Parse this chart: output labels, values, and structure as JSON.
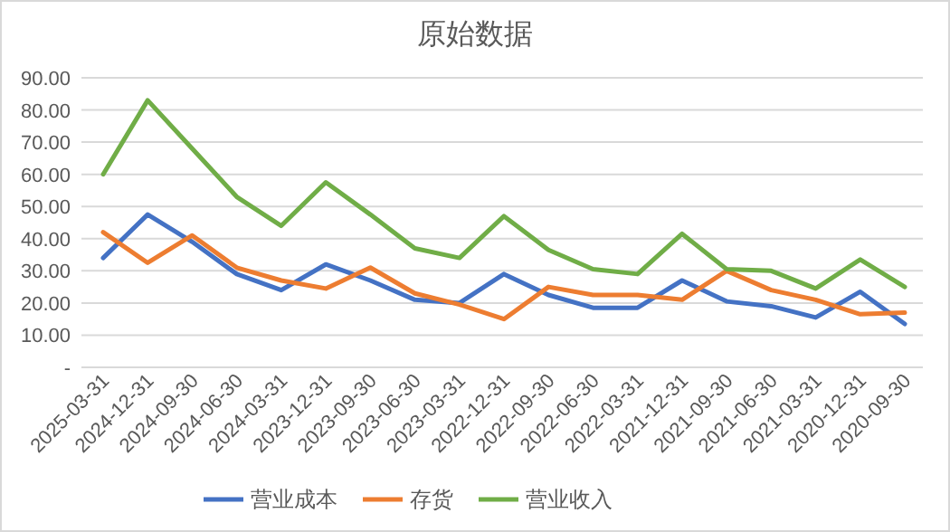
{
  "chart_data": {
    "type": "line",
    "title": "原始数据",
    "categories": [
      "2025-03-31",
      "2024-12-31",
      "2024-09-30",
      "2024-06-30",
      "2024-03-31",
      "2023-12-31",
      "2023-09-30",
      "2023-06-30",
      "2023-03-31",
      "2022-12-31",
      "2022-09-30",
      "2022-06-30",
      "2022-03-31",
      "2021-12-31",
      "2021-09-30",
      "2021-06-30",
      "2021-03-31",
      "2020-12-31",
      "2020-09-30"
    ],
    "series": [
      {
        "name": "营业成本",
        "color": "#4472c4",
        "values": [
          34,
          47.5,
          39,
          29,
          24,
          32,
          27,
          21,
          20,
          29,
          22.5,
          18.5,
          18.5,
          27,
          20.5,
          19,
          15.5,
          23.5,
          13.5
        ]
      },
      {
        "name": "存货",
        "color": "#ed7d31",
        "values": [
          42,
          32.5,
          41,
          31,
          27,
          24.5,
          31,
          23,
          19.5,
          15,
          25,
          22.5,
          22.5,
          21,
          30,
          24,
          21,
          16.5,
          17
        ]
      },
      {
        "name": "营业收入",
        "color": "#70ad47",
        "values": [
          60,
          83,
          68,
          53,
          44,
          57.5,
          47.5,
          37,
          34,
          47,
          36.5,
          30.5,
          29,
          41.5,
          30.5,
          30,
          24.5,
          33.5,
          25
        ]
      }
    ],
    "ylim": [
      0,
      90
    ],
    "yticks": [
      {
        "value": 0,
        "label": "-"
      },
      {
        "value": 10,
        "label": "10.00"
      },
      {
        "value": 20,
        "label": "20.00"
      },
      {
        "value": 30,
        "label": "30.00"
      },
      {
        "value": 40,
        "label": "40.00"
      },
      {
        "value": 50,
        "label": "50.00"
      },
      {
        "value": 60,
        "label": "60.00"
      },
      {
        "value": 70,
        "label": "70.00"
      },
      {
        "value": 80,
        "label": "80.00"
      },
      {
        "value": 90,
        "label": "90.00"
      }
    ],
    "grid": "y",
    "legend": "bottom",
    "marker": "none",
    "line_style": "solid"
  }
}
